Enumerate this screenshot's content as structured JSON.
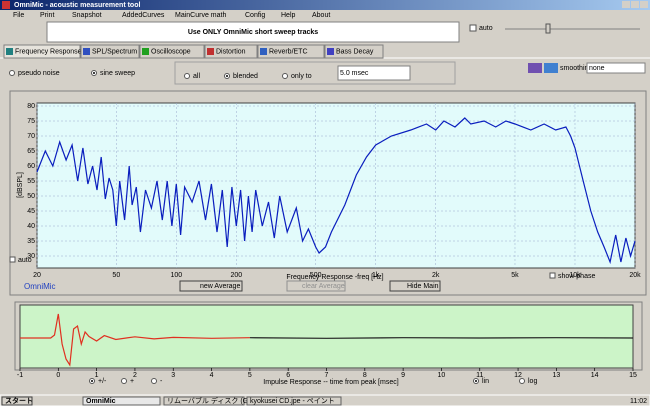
{
  "window": {
    "title": "OmniMic - acoustic measurement tool"
  },
  "menu": [
    "File",
    "Print",
    "Snapshot",
    "AddedCurves",
    "MainCurve math",
    "Config",
    "Help",
    "About"
  ],
  "banner": "Use ONLY OmniMic short sweep tracks",
  "auto_label": "auto",
  "tabs": [
    "Frequency Response",
    "SPL/Spectrum",
    "Oscilloscope",
    "Distortion",
    "Reverb/ETC",
    "Bass Decay"
  ],
  "signal_options": [
    "pseudo noise",
    "sine sweep"
  ],
  "window_options": [
    "all",
    "blended",
    "only to"
  ],
  "only_to_value": "5.0 msec",
  "smoothing": {
    "label": "smoothing",
    "value": "none"
  },
  "frequency_chart": {
    "type": "line",
    "ylabel": "[dBSPL]",
    "xlabel": "Frequency Response -freq [Hz]",
    "log_x": true,
    "grid": true,
    "color": "#0a1ebe",
    "xlim": [
      20,
      20000
    ],
    "ylim": [
      26,
      81
    ],
    "xticks": [
      20,
      50,
      100,
      200,
      500,
      {
        "value": 1000,
        "label": "1k"
      },
      {
        "value": 2000,
        "label": "2k"
      },
      {
        "value": 5000,
        "label": "5k"
      },
      {
        "value": 10000,
        "label": "10k"
      },
      {
        "value": 20000,
        "label": "20k"
      }
    ],
    "yticks": [
      30,
      35,
      40,
      45,
      50,
      55,
      60,
      65,
      70,
      75,
      80
    ],
    "x": [
      20,
      22,
      24,
      26,
      28,
      30,
      32,
      34,
      36,
      38,
      40,
      42,
      44,
      46,
      48,
      50,
      52,
      55,
      58,
      60,
      63,
      66,
      70,
      75,
      80,
      85,
      90,
      95,
      100,
      105,
      110,
      120,
      130,
      140,
      150,
      160,
      170,
      180,
      190,
      200,
      210,
      220,
      230,
      240,
      250,
      270,
      290,
      310,
      330,
      360,
      400,
      430,
      460,
      500,
      520,
      560,
      600,
      700,
      800,
      900,
      1000,
      1200,
      1500,
      1800,
      2000,
      2200,
      2500,
      2800,
      3000,
      3500,
      4000,
      4500,
      5000,
      6000,
      7000,
      8000,
      9000,
      9500,
      10000,
      11000,
      12000,
      13000,
      14000,
      15000,
      16000,
      17000,
      18000,
      19000,
      20000
    ],
    "values": [
      58,
      65,
      60,
      68,
      62,
      67,
      55,
      66,
      54,
      60,
      52,
      63,
      49,
      56,
      52,
      40,
      55,
      42,
      60,
      47,
      53,
      38,
      52,
      46,
      55,
      42,
      55,
      40,
      54,
      37,
      53,
      48,
      55,
      42,
      54,
      38,
      52,
      33,
      53,
      40,
      52,
      35,
      50,
      38,
      52,
      40,
      48,
      36,
      50,
      38,
      46,
      35,
      39,
      33,
      31,
      33,
      38,
      47,
      57,
      63,
      67,
      70,
      72,
      74,
      72,
      75,
      73,
      76,
      74,
      75,
      73,
      75,
      74,
      72,
      74,
      72,
      73,
      70,
      66,
      55,
      45,
      38,
      33,
      28,
      37,
      28,
      36,
      30,
      35
    ]
  },
  "frequency_controls": {
    "auto": "auto",
    "show_phase": "show phase",
    "new_average": "new Average",
    "clear_average": "clear Average",
    "hide_main": "Hide Main",
    "brand": "OmniMic"
  },
  "impulse_chart": {
    "type": "line",
    "xlabel": "Impulse Response -- time from peak [msec]",
    "xlim": [
      -1,
      15
    ],
    "ylim": [
      -1,
      1
    ],
    "xticks": [
      -1,
      0,
      1,
      2,
      3,
      4,
      5,
      6,
      7,
      8,
      9,
      10,
      11,
      12,
      13,
      14,
      15
    ],
    "series": [
      {
        "color": "#e03020",
        "x": [
          -1,
          -0.2,
          -0.1,
          0,
          0.1,
          0.2,
          0.3,
          0.4,
          0.5,
          0.6,
          0.7,
          0.8,
          1,
          1.2,
          1.5,
          2,
          2.5,
          3,
          4,
          5
        ],
        "values": [
          0,
          0,
          0.1,
          0.8,
          -0.2,
          -0.7,
          -0.9,
          0.3,
          0.4,
          -0.2,
          0.2,
          0.05,
          -0.1,
          0.08,
          -0.05,
          0.04,
          -0.03,
          0.02,
          -0.01,
          0.01
        ]
      },
      {
        "color": "#202020",
        "x": [
          5,
          7,
          9,
          11,
          13,
          15
        ],
        "values": [
          0.01,
          -0.01,
          0.01,
          0,
          0.01,
          0
        ]
      }
    ],
    "options": [
      "+/-",
      "+",
      "-",
      "lin",
      "log"
    ]
  },
  "taskbar": {
    "start": "スタート",
    "items": [
      "OmniMic",
      "リムーバブル ディスク (G:)",
      "kyokusei CD.jpe - ペイント"
    ],
    "clock": "11:02"
  }
}
